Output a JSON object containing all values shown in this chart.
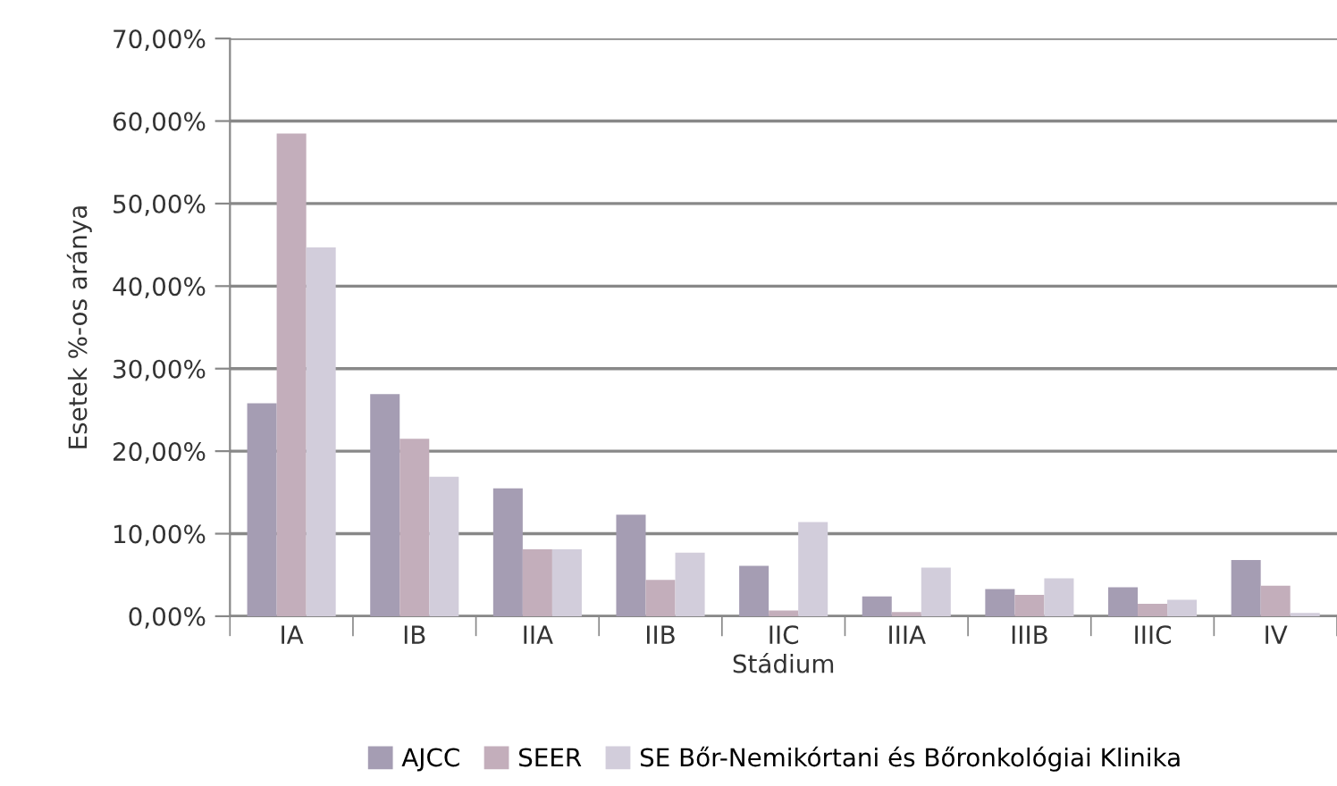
{
  "chart_data": {
    "type": "bar",
    "xlabel": "Stádium",
    "ylabel": "Esetek %-os aránya",
    "categories": [
      "IA",
      "IB",
      "IIA",
      "IIB",
      "IIC",
      "IIIA",
      "IIIB",
      "IIIC",
      "IV"
    ],
    "series": [
      {
        "name": "AJCC",
        "color": "#a59db3",
        "values": [
          25.8,
          26.9,
          15.5,
          12.3,
          6.1,
          2.4,
          3.3,
          3.5,
          6.8
        ]
      },
      {
        "name": "SEER",
        "color": "#c3aebb",
        "values": [
          58.5,
          21.5,
          8.1,
          4.4,
          0.7,
          0.5,
          2.6,
          1.5,
          3.7
        ]
      },
      {
        "name": "SE Bőr-Nemikórtani és Bőronkológiai Klinika",
        "color": "#d2cddb",
        "values": [
          44.7,
          16.9,
          8.1,
          7.7,
          11.4,
          5.9,
          4.6,
          2.0,
          0.4
        ]
      }
    ],
    "ylim": [
      0,
      70
    ],
    "yticks": [
      {
        "value": 0,
        "label": "0,00%"
      },
      {
        "value": 10,
        "label": "10,00%"
      },
      {
        "value": 20,
        "label": "20,00%"
      },
      {
        "value": 30,
        "label": "30,00%"
      },
      {
        "value": 40,
        "label": "40,00%"
      },
      {
        "value": 50,
        "label": "50,00%"
      },
      {
        "value": 60,
        "label": "60,00%"
      },
      {
        "value": 70,
        "label": "70,00%"
      }
    ],
    "grid": "y",
    "legend": "bottom"
  }
}
